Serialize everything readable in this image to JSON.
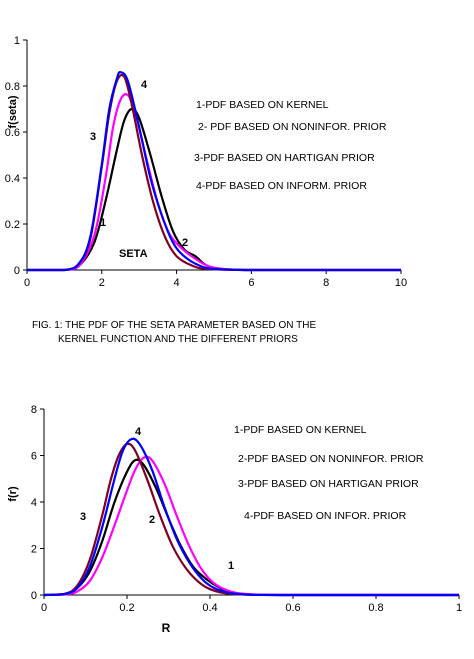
{
  "chart_data": [
    {
      "type": "line",
      "xlabel": "",
      "ylabel": "f(seta)",
      "xlim": [
        0,
        10
      ],
      "ylim": [
        0,
        1
      ],
      "xticks": [
        "0",
        "2",
        "4",
        "6",
        "8",
        "10"
      ],
      "yticks": [
        "0",
        "0.2",
        "0.4",
        "0.6",
        "0.8",
        "1"
      ],
      "grid": false,
      "annotations": [
        "SETA",
        "1",
        "2",
        "3",
        "4"
      ],
      "legend": [
        "1-PDF BASED ON KERNEL",
        "2- PDF BASED ON NONINFOR. PRIOR",
        "3-PDF BASED ON HARTIGAN PRIOR",
        "4-PDF BASED ON INFORM. PRIOR"
      ],
      "series": [
        {
          "name": "1",
          "color": "#000000",
          "x": [
            0,
            1.0,
            1.4,
            1.8,
            2.1,
            2.4,
            2.6,
            2.8,
            3.0,
            3.3,
            3.6,
            3.9,
            4.2,
            4.5,
            4.8,
            5.2,
            6,
            8,
            10
          ],
          "y": [
            0,
            0.0,
            0.02,
            0.12,
            0.3,
            0.52,
            0.65,
            0.7,
            0.66,
            0.5,
            0.32,
            0.17,
            0.09,
            0.06,
            0.02,
            0.005,
            0,
            0,
            0
          ]
        },
        {
          "name": "2",
          "color": "#ff00ff",
          "x": [
            0,
            1.0,
            1.4,
            1.8,
            2.1,
            2.3,
            2.5,
            2.7,
            2.9,
            3.2,
            3.5,
            3.8,
            4.1,
            4.4,
            4.8,
            5.2,
            6,
            8,
            10
          ],
          "y": [
            0,
            0.0,
            0.02,
            0.15,
            0.4,
            0.62,
            0.74,
            0.76,
            0.68,
            0.48,
            0.29,
            0.16,
            0.1,
            0.06,
            0.02,
            0.005,
            0,
            0,
            0
          ]
        },
        {
          "name": "3",
          "color": "#800020",
          "x": [
            0,
            1.0,
            1.4,
            1.7,
            2.0,
            2.2,
            2.4,
            2.6,
            2.8,
            3.1,
            3.4,
            3.7,
            4.0,
            4.4,
            4.8,
            6,
            8,
            10
          ],
          "y": [
            0,
            0.0,
            0.03,
            0.14,
            0.45,
            0.68,
            0.82,
            0.84,
            0.72,
            0.48,
            0.28,
            0.14,
            0.06,
            0.02,
            0.005,
            0,
            0,
            0
          ]
        },
        {
          "name": "4",
          "color": "#0000ff",
          "x": [
            0,
            1.0,
            1.4,
            1.7,
            2.0,
            2.2,
            2.4,
            2.5,
            2.7,
            3.0,
            3.3,
            3.6,
            3.9,
            4.2,
            4.6,
            5.0,
            6,
            8,
            10
          ],
          "y": [
            0,
            0.0,
            0.03,
            0.15,
            0.46,
            0.7,
            0.83,
            0.86,
            0.82,
            0.62,
            0.4,
            0.24,
            0.12,
            0.06,
            0.02,
            0.005,
            0,
            0,
            0
          ]
        }
      ]
    },
    {
      "type": "line",
      "xlabel": "R",
      "ylabel": "f(r)",
      "xlim": [
        0,
        1
      ],
      "ylim": [
        0,
        8
      ],
      "xticks": [
        "0",
        "0.2",
        "0.4",
        "0.6",
        "0.8",
        "1"
      ],
      "yticks": [
        "0",
        "2",
        "4",
        "6",
        "8"
      ],
      "grid": false,
      "annotations": [
        "1",
        "2",
        "3",
        "4"
      ],
      "legend": [
        "1-PDF BASED ON KERNEL",
        "2-PDF BASED ON NONINFOR. PRIOR",
        "3-PDF BASED ON HARTIGAN PRIOR",
        "4-PDF BASED ON INFOR. PRIOR"
      ],
      "series": [
        {
          "name": "1",
          "color": "#000000",
          "x": [
            0,
            0.05,
            0.08,
            0.11,
            0.14,
            0.17,
            0.2,
            0.22,
            0.24,
            0.27,
            0.3,
            0.33,
            0.36,
            0.39,
            0.42,
            0.45,
            0.5,
            0.6,
            0.8,
            1
          ],
          "y": [
            0,
            0.05,
            0.3,
            1.0,
            2.3,
            4.0,
            5.3,
            5.8,
            5.6,
            4.6,
            3.3,
            2.1,
            1.2,
            0.7,
            0.35,
            0.12,
            0.02,
            0,
            0,
            0
          ]
        },
        {
          "name": "2",
          "color": "#ff00ff",
          "x": [
            0,
            0.05,
            0.08,
            0.11,
            0.14,
            0.17,
            0.2,
            0.22,
            0.24,
            0.26,
            0.29,
            0.32,
            0.35,
            0.38,
            0.41,
            0.45,
            0.5,
            0.6,
            0.8,
            1
          ],
          "y": [
            0,
            0.02,
            0.15,
            0.6,
            1.6,
            3.0,
            4.5,
            5.4,
            5.9,
            5.8,
            4.8,
            3.4,
            2.1,
            1.1,
            0.5,
            0.15,
            0.03,
            0,
            0,
            0
          ]
        },
        {
          "name": "3",
          "color": "#800020",
          "x": [
            0,
            0.05,
            0.08,
            0.11,
            0.14,
            0.16,
            0.18,
            0.2,
            0.22,
            0.25,
            0.28,
            0.31,
            0.34,
            0.37,
            0.4,
            0.44,
            0.5,
            0.6,
            0.8,
            1
          ],
          "y": [
            0,
            0.05,
            0.4,
            1.5,
            3.4,
            4.9,
            6.0,
            6.5,
            6.2,
            4.9,
            3.4,
            2.1,
            1.2,
            0.6,
            0.25,
            0.07,
            0.01,
            0,
            0,
            0
          ]
        },
        {
          "name": "4",
          "color": "#0000ff",
          "x": [
            0,
            0.05,
            0.08,
            0.11,
            0.14,
            0.17,
            0.19,
            0.21,
            0.23,
            0.26,
            0.29,
            0.32,
            0.35,
            0.38,
            0.41,
            0.45,
            0.5,
            0.6,
            0.8,
            1
          ],
          "y": [
            0,
            0.04,
            0.3,
            1.2,
            2.9,
            5.0,
            6.2,
            6.7,
            6.5,
            5.4,
            3.8,
            2.4,
            1.4,
            0.7,
            0.3,
            0.08,
            0.01,
            0,
            0,
            0
          ]
        }
      ]
    }
  ],
  "captions": {
    "fig1_line1": "FIG. 1: THE PDF OF THE SETA PARAMETER BASED ON THE",
    "fig1_line2": "KERNEL FUNCTION AND THE DIFFERENT PRIORS"
  }
}
